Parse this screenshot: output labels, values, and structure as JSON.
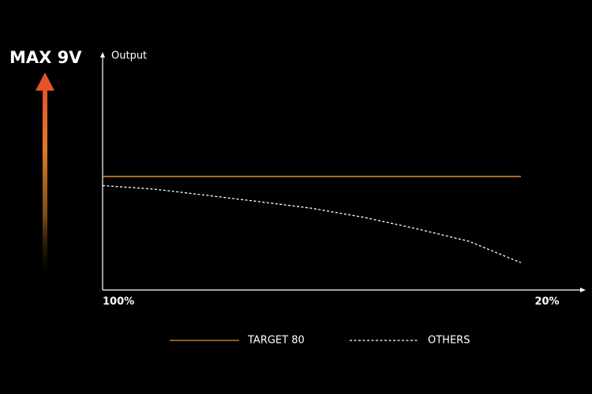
{
  "chart_data": {
    "type": "line",
    "badge": "MAX 9V",
    "y_label": "Output",
    "x": [
      100,
      90,
      80,
      70,
      60,
      50,
      40,
      30,
      20
    ],
    "xlim": [
      100,
      20
    ],
    "xticks": [
      {
        "value": 100,
        "label": "100%"
      },
      {
        "value": 20,
        "label": "20%"
      }
    ],
    "ylim": [
      0,
      100
    ],
    "series": [
      {
        "name": "TARGET 80",
        "color": "#e0952a",
        "style": "solid",
        "values": [
          50,
          50,
          50,
          50,
          50,
          50,
          50,
          50,
          50
        ]
      },
      {
        "name": "OTHERS",
        "color": "#ffffff",
        "style": "dotted",
        "values": [
          46,
          44.4,
          41.7,
          38.9,
          36,
          32,
          27,
          21.5,
          12
        ]
      }
    ]
  }
}
